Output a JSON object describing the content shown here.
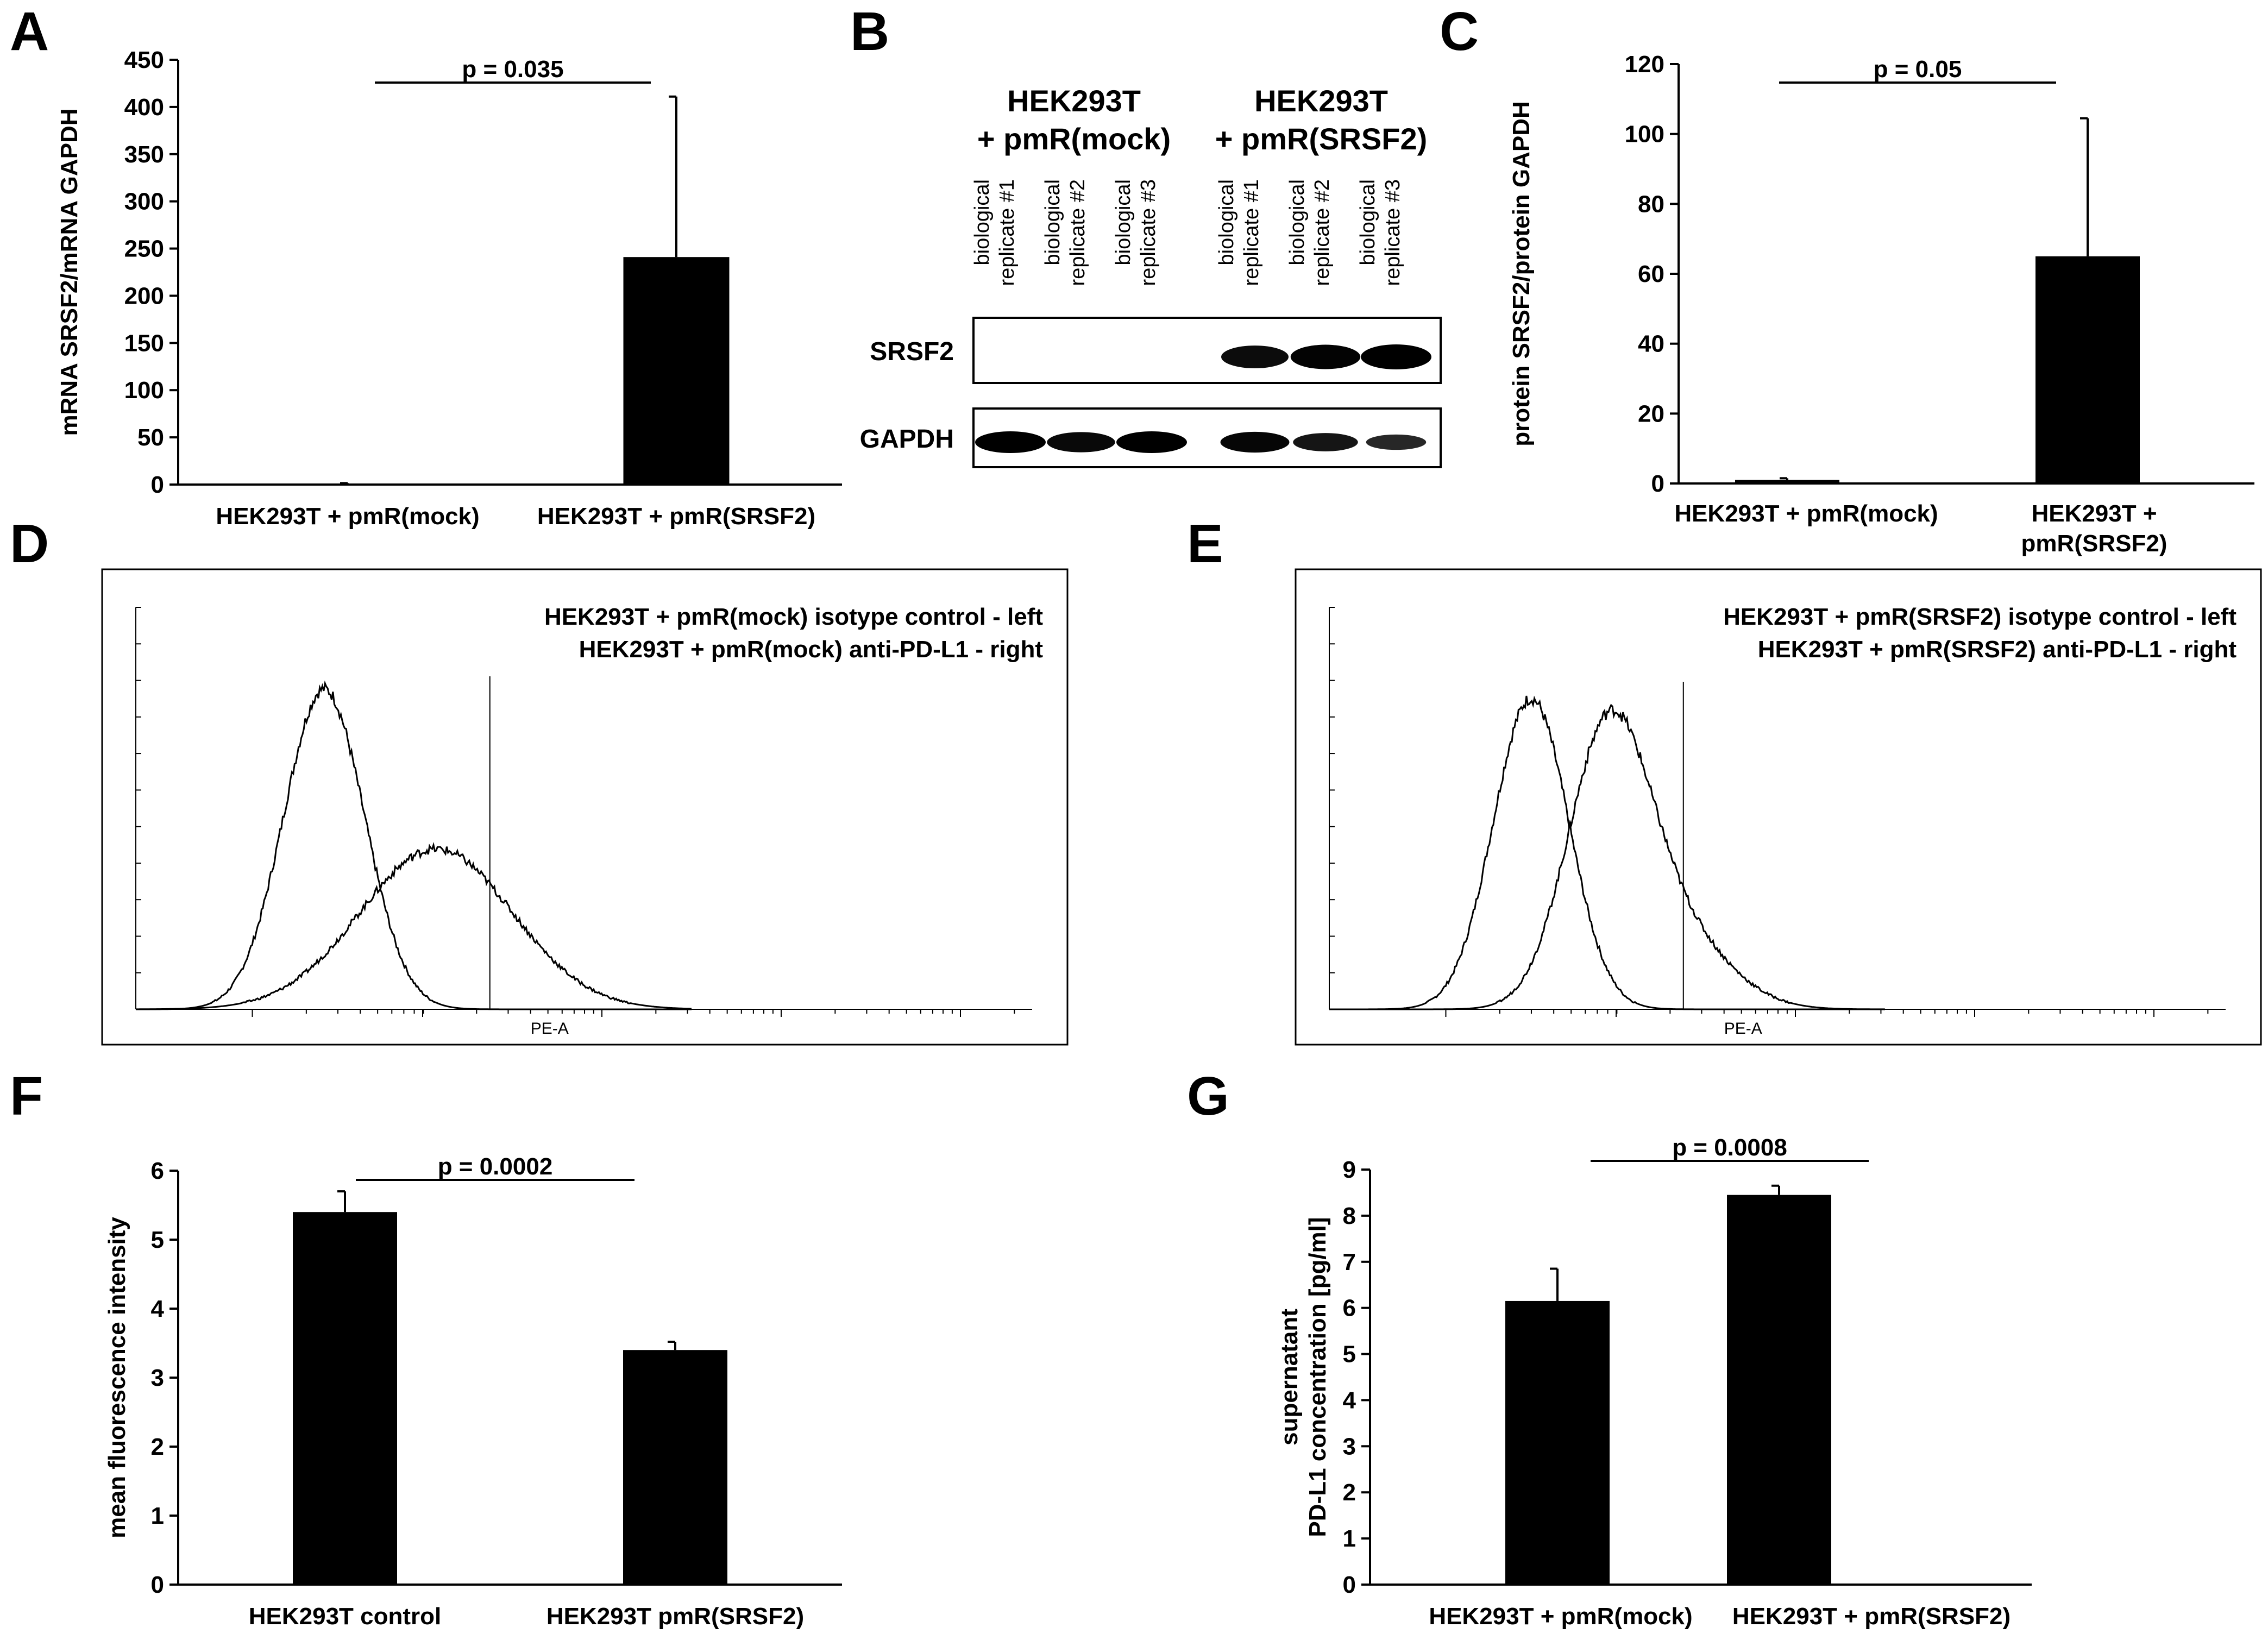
{
  "panel_letters": {
    "a": "A",
    "b": "B",
    "c": "C",
    "d": "D",
    "e": "E",
    "f": "F",
    "g": "G"
  },
  "colors": {
    "bar": "#000000",
    "line": "#000000",
    "background": "#ffffff"
  },
  "chart_data": [
    {
      "id": "A",
      "type": "bar",
      "ylabel": "mRNA SRSF2/mRNA GAPDH",
      "xlabel": "",
      "categories": [
        "HEK293T + pmR(mock)",
        "HEK293T + pmR(SRSF2)"
      ],
      "values": [
        1,
        241
      ],
      "errors": [
        0.5,
        170
      ],
      "ylim": [
        0,
        450
      ],
      "yticks": [
        0,
        50,
        100,
        150,
        200,
        250,
        300,
        350,
        400,
        450
      ],
      "significance": {
        "label": "p = 0.035",
        "between": [
          0,
          1
        ]
      }
    },
    {
      "id": "C",
      "type": "bar",
      "ylabel": "protein SRSF2/protein GAPDH",
      "xlabel": "",
      "categories": [
        "HEK293T  + pmR(mock)",
        "HEK293T  + pmR(SRSF2)"
      ],
      "category_lines": [
        [
          "HEK293T  + pmR(mock)"
        ],
        [
          "HEK293T  +",
          "pmR(SRSF2)"
        ]
      ],
      "values": [
        1,
        65
      ],
      "errors": [
        0.5,
        39.5
      ],
      "ylim": [
        0,
        120
      ],
      "yticks": [
        0,
        20,
        40,
        60,
        80,
        100,
        120
      ],
      "significance": {
        "label": "p = 0.05",
        "between": [
          0,
          1
        ]
      }
    },
    {
      "id": "D",
      "type": "line",
      "title": "",
      "xlabel": "PE-A",
      "legend": [
        "HEK293T + pmR(mock) isotype control - left",
        "HEK293T + pmR(mock) anti-PD-L1 - right"
      ],
      "x_range": [
        0,
        1
      ],
      "marker_x": 0.395,
      "series": [
        {
          "name": "isotype control",
          "peaks": [
            {
              "center": 0.21,
              "width": 0.045,
              "height": 1.0
            }
          ]
        },
        {
          "name": "anti-PD-L1",
          "peaks": [
            {
              "center": 0.335,
              "width": 0.085,
              "height": 0.5
            }
          ]
        }
      ]
    },
    {
      "id": "E",
      "type": "line",
      "title": "",
      "xlabel": "PE-A",
      "legend": [
        "HEK293T + pmR(SRSF2) isotype control - left",
        "HEK293T + pmR(SRSF2) anti-PD-L1 - right"
      ],
      "x_range": [
        0,
        1
      ],
      "marker_x": 0.395,
      "series": [
        {
          "name": "isotype control",
          "peaks": [
            {
              "center": 0.225,
              "width": 0.042,
              "height": 0.97
            }
          ]
        },
        {
          "name": "anti-PD-L1",
          "peaks": [
            {
              "center": 0.31,
              "width": 0.045,
              "height": 0.8
            },
            {
              "center": 0.38,
              "width": 0.06,
              "height": 0.25
            }
          ]
        }
      ]
    },
    {
      "id": "F",
      "type": "bar",
      "ylabel": "mean fluorescence intensity",
      "xlabel": "",
      "categories": [
        "HEK293T control",
        "HEK293T pmR(SRSF2)"
      ],
      "values": [
        5.4,
        3.4
      ],
      "errors": [
        0.3,
        0.12
      ],
      "ylim": [
        0,
        6
      ],
      "yticks": [
        0,
        1,
        2,
        3,
        4,
        5,
        6
      ],
      "significance": {
        "label": "p = 0.0002",
        "between": [
          0,
          1
        ]
      }
    },
    {
      "id": "G",
      "type": "bar",
      "ylabel": "supernatant PD-L1 concentration [pg/ml]",
      "ylabel_lines": [
        "supernatant",
        "PD-L1 concentration [pg/ml]"
      ],
      "xlabel": "",
      "categories": [
        "HEK293T + pmR(mock)",
        "HEK293T + pmR(SRSF2)"
      ],
      "values": [
        6.15,
        8.45
      ],
      "errors": [
        0.7,
        0.2
      ],
      "ylim": [
        0,
        9
      ],
      "yticks": [
        0,
        1,
        2,
        3,
        4,
        5,
        6,
        7,
        8,
        9
      ],
      "significance": {
        "label": "p = 0.0008",
        "between": [
          0,
          1
        ]
      }
    }
  ],
  "blot": {
    "groups": [
      {
        "lines": [
          "HEK293T",
          "+ pmR(mock)"
        ]
      },
      {
        "lines": [
          "HEK293T",
          "+ pmR(SRSF2)"
        ]
      }
    ],
    "lanes": [
      {
        "lines": [
          "biological",
          "replicate #1"
        ]
      },
      {
        "lines": [
          "biological",
          "replicate #2"
        ]
      },
      {
        "lines": [
          "biological",
          "replicate #3"
        ]
      },
      {
        "lines": [
          "biological",
          "replicate #1"
        ]
      },
      {
        "lines": [
          "biological",
          "replicate #2"
        ]
      },
      {
        "lines": [
          "biological",
          "replicate #3"
        ]
      }
    ],
    "rows": [
      {
        "label": "SRSF2",
        "intensities": [
          0,
          0,
          0,
          0.8,
          0.95,
          1.0
        ]
      },
      {
        "label": "GAPDH",
        "intensities": [
          1.0,
          0.85,
          1.0,
          0.9,
          0.65,
          0.35
        ]
      }
    ]
  }
}
